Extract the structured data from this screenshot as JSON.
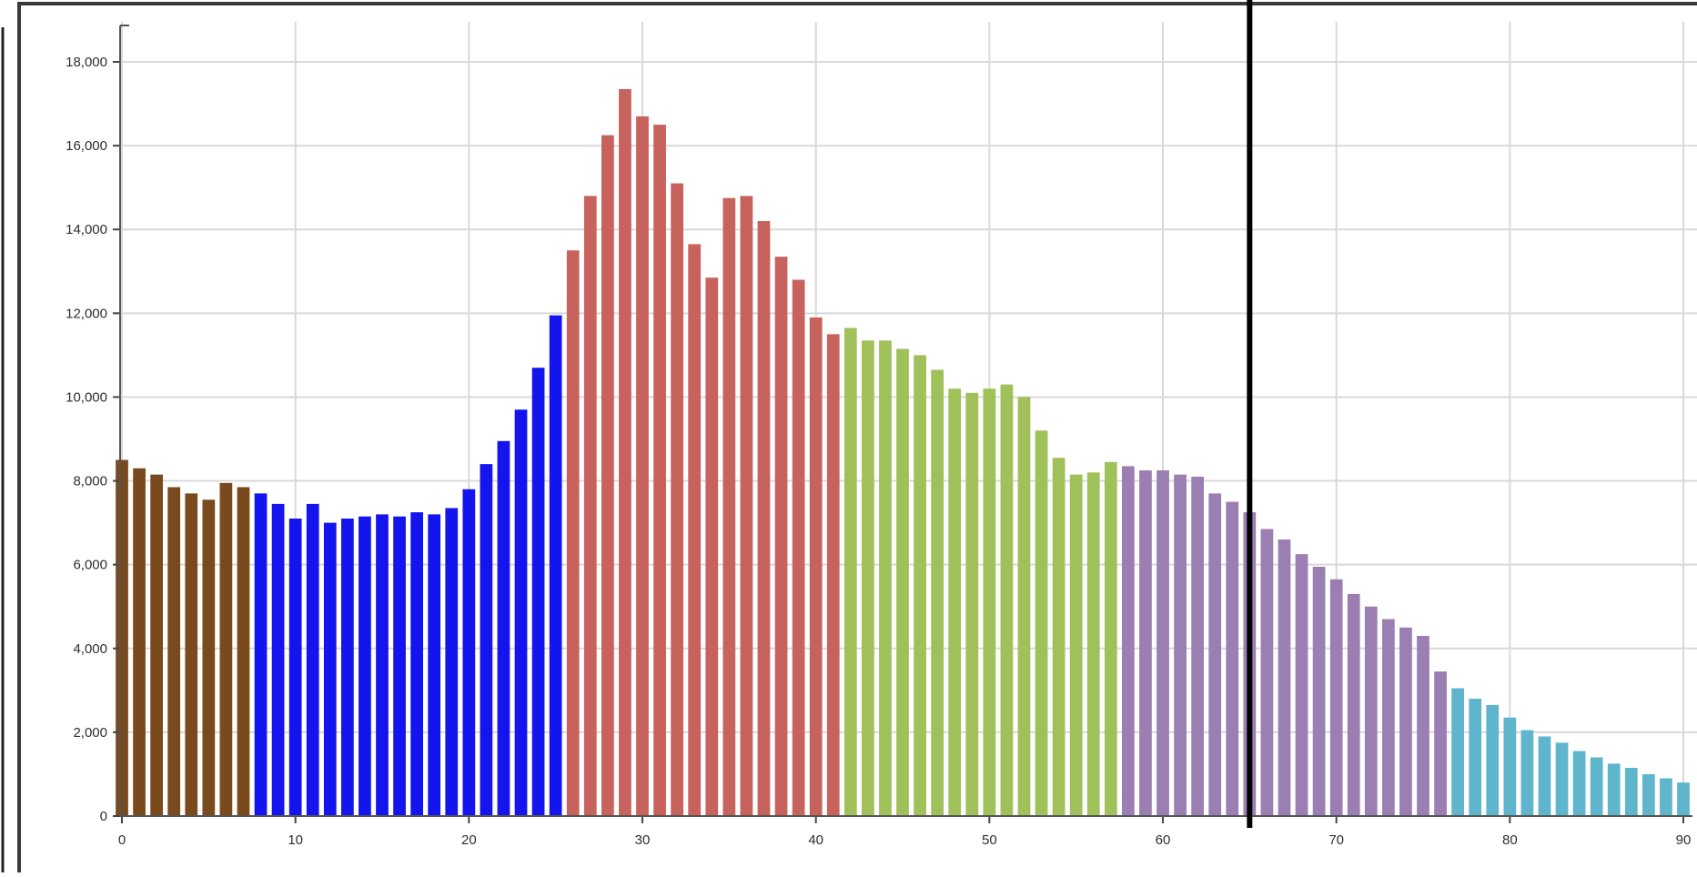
{
  "chart_data": {
    "type": "bar",
    "title": "",
    "xlabel": "",
    "ylabel": "",
    "xlim": [
      0,
      90
    ],
    "ylim": [
      0,
      18000
    ],
    "grid": true,
    "x_ticks": [
      "0",
      "10",
      "20",
      "30",
      "40",
      "50",
      "60",
      "70",
      "80",
      "90"
    ],
    "y_ticks": [
      "0",
      "2,000",
      "4,000",
      "6,000",
      "8,000",
      "10,000",
      "12,000",
      "14,000",
      "16,000",
      "18,000"
    ],
    "x_tick_values": [
      0,
      10,
      20,
      30,
      40,
      50,
      60,
      70,
      80,
      90
    ],
    "y_tick_values": [
      0,
      2000,
      4000,
      6000,
      8000,
      10000,
      12000,
      14000,
      16000,
      18000
    ],
    "marker_line_x": 65,
    "series": [
      {
        "color": "#7a4a1f",
        "x": [
          0,
          1,
          2,
          3,
          4,
          5,
          6,
          7
        ],
        "values": [
          8500,
          8300,
          8150,
          7850,
          7700,
          7550,
          7950,
          7850
        ]
      },
      {
        "color": "#1414ee",
        "x": [
          8,
          9,
          10,
          11,
          12,
          13,
          14,
          15,
          16,
          17,
          18,
          19,
          20,
          21,
          22,
          23,
          24,
          25
        ],
        "values": [
          7700,
          7450,
          7100,
          7450,
          7000,
          7100,
          7150,
          7200,
          7150,
          7250,
          7200,
          7350,
          7800,
          8400,
          8950,
          9700,
          10700,
          11950
        ]
      },
      {
        "color": "#c8625c",
        "x": [
          26,
          27,
          28,
          29,
          30,
          31,
          32,
          33,
          34,
          35,
          36,
          37,
          38,
          39,
          40,
          41
        ],
        "values": [
          13500,
          14800,
          16250,
          17350,
          16700,
          16500,
          15100,
          13650,
          12850,
          14750,
          14800,
          14200,
          13350,
          12800,
          11900,
          11500
        ]
      },
      {
        "color": "#a0c05a",
        "x": [
          42,
          43,
          44,
          45,
          46,
          47,
          48,
          49,
          50,
          51,
          52,
          53,
          54,
          55,
          56,
          57
        ],
        "values": [
          11650,
          11350,
          11350,
          11150,
          11000,
          10650,
          10200,
          10100,
          10200,
          10300,
          10000,
          9200,
          8550,
          8150,
          8200,
          8450
        ]
      },
      {
        "color": "#9b7eb2",
        "x": [
          58,
          59,
          60,
          61,
          62,
          63,
          64,
          65,
          66,
          67,
          68,
          69,
          70,
          71,
          72,
          73,
          74,
          75,
          76
        ],
        "values": [
          8350,
          8250,
          8250,
          8150,
          8100,
          7700,
          7500,
          7250,
          6850,
          6600,
          6250,
          5950,
          5650,
          5300,
          5000,
          4700,
          4500,
          4300,
          3450
        ]
      },
      {
        "color": "#5eb5cc",
        "x": [
          77,
          78,
          79,
          80,
          81,
          82,
          83,
          84,
          85,
          86,
          87,
          88,
          89,
          90
        ],
        "values": [
          3050,
          2800,
          2650,
          2350,
          2050,
          1900,
          1750,
          1550,
          1400,
          1250,
          1150,
          1000,
          900,
          800
        ]
      }
    ]
  }
}
